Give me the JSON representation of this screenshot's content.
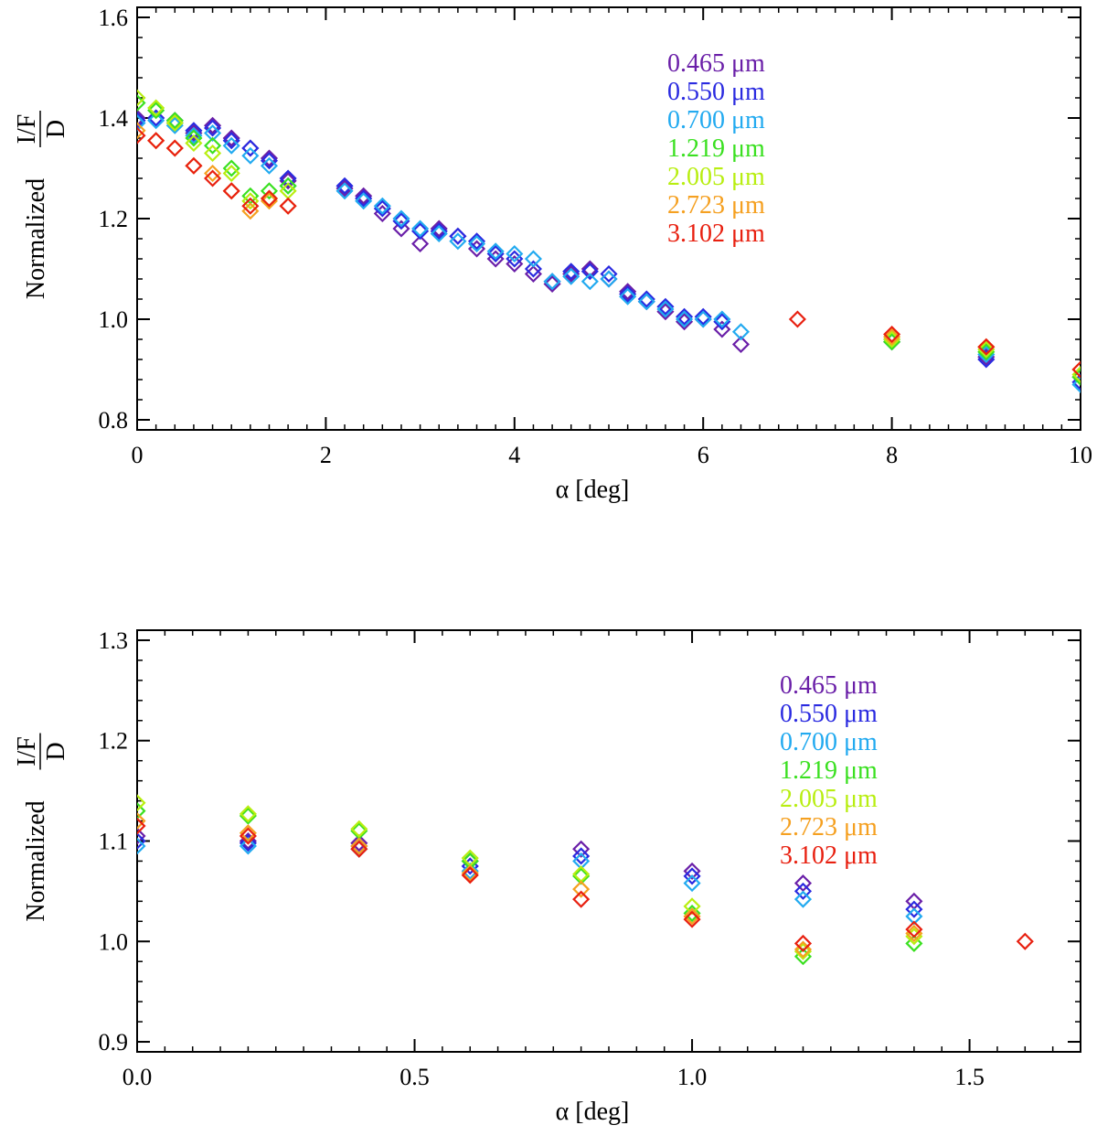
{
  "chart_data": [
    {
      "type": "scatter",
      "marker": "diamond",
      "xlabel": "α [deg]",
      "ylabel_prefix": "Normalized",
      "ylabel_num": "I/F",
      "ylabel_den": "D",
      "xlim": [
        0,
        10
      ],
      "ylim": [
        0.78,
        1.62
      ],
      "xticks": [
        0,
        2,
        4,
        6,
        8,
        10
      ],
      "xtick_labels": [
        "0",
        "2",
        "4",
        "6",
        "8",
        "10"
      ],
      "yticks": [
        0.8,
        1.0,
        1.2,
        1.4,
        1.6
      ],
      "ytick_labels": [
        "0.8",
        "1.0",
        "1.2",
        "1.4",
        "1.6"
      ],
      "legend_placement": "top-right",
      "series": [
        {
          "name": "0.465 μm",
          "color": "#6a1fa8",
          "x": [
            0,
            0.2,
            0.4,
            0.6,
            0.8,
            1.0,
            1.2,
            1.4,
            1.6,
            2.2,
            2.4,
            2.6,
            2.8,
            3.0,
            3.2,
            3.4,
            3.6,
            3.8,
            4.0,
            4.2,
            4.4,
            4.6,
            4.8,
            5.0,
            5.2,
            5.4,
            5.6,
            5.8,
            6.0,
            6.2,
            6.4,
            9.0,
            10.0
          ],
          "y": [
            1.4,
            1.4,
            1.395,
            1.37,
            1.385,
            1.36,
            1.34,
            1.32,
            1.275,
            1.26,
            1.245,
            1.21,
            1.18,
            1.15,
            1.18,
            1.165,
            1.14,
            1.12,
            1.11,
            1.09,
            1.07,
            1.09,
            1.1,
            1.08,
            1.055,
            1.035,
            1.015,
            0.995,
            1.0,
            0.98,
            0.95,
            0.925,
            0.885
          ]
        },
        {
          "name": "0.550 μm",
          "color": "#2a2ae0",
          "x": [
            0,
            0.2,
            0.4,
            0.6,
            0.8,
            1.0,
            1.2,
            1.4,
            1.6,
            2.2,
            2.4,
            2.6,
            2.8,
            3.0,
            3.2,
            3.4,
            3.6,
            3.8,
            4.0,
            4.2,
            4.4,
            4.6,
            4.8,
            5.0,
            5.2,
            5.4,
            5.6,
            5.8,
            6.0,
            6.2,
            8.0,
            9.0,
            10.0
          ],
          "y": [
            1.395,
            1.4,
            1.39,
            1.375,
            1.38,
            1.355,
            1.34,
            1.315,
            1.28,
            1.265,
            1.24,
            1.22,
            1.195,
            1.175,
            1.175,
            1.165,
            1.155,
            1.13,
            1.12,
            1.1,
            1.075,
            1.095,
            1.095,
            1.09,
            1.05,
            1.04,
            1.025,
            1.005,
            1.005,
            0.995,
            0.955,
            0.92,
            0.875
          ]
        },
        {
          "name": "0.700 μm",
          "color": "#22aaf0",
          "x": [
            0,
            0.2,
            0.4,
            0.6,
            0.8,
            1.0,
            1.2,
            1.4,
            1.6,
            2.2,
            2.4,
            2.6,
            2.8,
            3.0,
            3.2,
            3.4,
            3.6,
            3.8,
            4.0,
            4.2,
            4.4,
            4.6,
            4.8,
            5.0,
            5.2,
            5.4,
            5.6,
            5.8,
            6.0,
            6.2,
            6.4,
            8.0,
            9.0,
            10.0
          ],
          "y": [
            1.39,
            1.395,
            1.385,
            1.365,
            1.37,
            1.345,
            1.325,
            1.305,
            1.265,
            1.255,
            1.235,
            1.225,
            1.2,
            1.18,
            1.17,
            1.155,
            1.15,
            1.135,
            1.13,
            1.12,
            1.075,
            1.085,
            1.075,
            1.08,
            1.045,
            1.035,
            1.02,
            1.0,
            1.0,
            1.0,
            0.975,
            0.96,
            0.93,
            0.87
          ]
        },
        {
          "name": "1.219 μm",
          "color": "#3ae020",
          "x": [
            0,
            0.2,
            0.4,
            0.6,
            0.8,
            1.0,
            1.2,
            1.4,
            1.6,
            8.0,
            9.0,
            10.0
          ],
          "y": [
            1.43,
            1.415,
            1.395,
            1.36,
            1.345,
            1.3,
            1.245,
            1.255,
            1.265,
            0.955,
            0.935,
            0.885
          ]
        },
        {
          "name": "2.005 μm",
          "color": "#b8ee10",
          "x": [
            0,
            0.2,
            0.4,
            0.6,
            0.8,
            1.0,
            1.2,
            1.4,
            1.6,
            8.0,
            9.0,
            10.0
          ],
          "y": [
            1.44,
            1.42,
            1.39,
            1.35,
            1.33,
            1.29,
            1.235,
            1.24,
            1.255,
            0.96,
            0.94,
            0.89
          ]
        },
        {
          "name": "2.723 μm",
          "color": "#f5a020",
          "x": [
            0,
            0.2,
            0.4,
            0.6,
            0.8,
            1.0,
            1.2,
            1.4,
            1.6,
            8.0,
            9.0,
            10.0
          ],
          "y": [
            1.375,
            1.355,
            1.34,
            1.305,
            1.29,
            1.255,
            1.215,
            1.235,
            1.225,
            0.965,
            0.945,
            0.9
          ]
        },
        {
          "name": "3.102 μm",
          "color": "#e82010",
          "x": [
            0,
            0.2,
            0.4,
            0.6,
            0.8,
            1.0,
            1.2,
            1.4,
            1.6,
            7.0,
            8.0,
            9.0,
            10.0
          ],
          "y": [
            1.365,
            1.355,
            1.34,
            1.305,
            1.28,
            1.255,
            1.225,
            1.24,
            1.225,
            1.0,
            0.97,
            0.945,
            0.9
          ]
        }
      ]
    },
    {
      "type": "scatter",
      "marker": "diamond",
      "xlabel": "α [deg]",
      "ylabel_prefix": "Normalized",
      "ylabel_num": "I/F",
      "ylabel_den": "D",
      "xlim": [
        0,
        1.7
      ],
      "ylim": [
        0.89,
        1.31
      ],
      "xticks": [
        0.0,
        0.5,
        1.0,
        1.5
      ],
      "xtick_labels": [
        "0.0",
        "0.5",
        "1.0",
        "1.5"
      ],
      "yticks": [
        0.9,
        1.0,
        1.1,
        1.2,
        1.3
      ],
      "ytick_labels": [
        "0.9",
        "1.0",
        "1.1",
        "1.2",
        "1.3"
      ],
      "legend_placement": "top-right",
      "series": [
        {
          "name": "0.465 μm",
          "color": "#6a1fa8",
          "x": [
            0,
            0.2,
            0.4,
            0.6,
            0.8,
            1.0,
            1.2,
            1.4
          ],
          "y": [
            1.105,
            1.1,
            1.098,
            1.08,
            1.092,
            1.07,
            1.058,
            1.04
          ]
        },
        {
          "name": "0.550 μm",
          "color": "#2a2ae0",
          "x": [
            0,
            0.2,
            0.4,
            0.6,
            0.8,
            1.0,
            1.2,
            1.4
          ],
          "y": [
            1.1,
            1.098,
            1.095,
            1.075,
            1.085,
            1.065,
            1.05,
            1.032
          ]
        },
        {
          "name": "0.700 μm",
          "color": "#22aaf0",
          "x": [
            0,
            0.2,
            0.4,
            0.6,
            0.8,
            1.0,
            1.2,
            1.4
          ],
          "y": [
            1.095,
            1.095,
            1.092,
            1.07,
            1.08,
            1.058,
            1.042,
            1.025
          ]
        },
        {
          "name": "1.219 μm",
          "color": "#3ae020",
          "x": [
            0,
            0.2,
            0.4,
            0.6,
            0.8,
            1.0,
            1.2,
            1.4
          ],
          "y": [
            1.13,
            1.125,
            1.11,
            1.08,
            1.065,
            1.028,
            0.985,
            0.998
          ]
        },
        {
          "name": "2.005 μm",
          "color": "#b8ee10",
          "x": [
            0,
            0.2,
            0.4,
            0.6,
            0.8,
            1.0,
            1.2,
            1.4
          ],
          "y": [
            1.138,
            1.127,
            1.112,
            1.083,
            1.067,
            1.035,
            0.99,
            1.005
          ]
        },
        {
          "name": "2.723 μm",
          "color": "#f5a020",
          "x": [
            0,
            0.2,
            0.4,
            0.6,
            0.8,
            1.0,
            1.2,
            1.4
          ],
          "y": [
            1.12,
            1.108,
            1.095,
            1.068,
            1.052,
            1.025,
            0.992,
            1.008
          ]
        },
        {
          "name": "3.102 μm",
          "color": "#e82010",
          "x": [
            0,
            0.2,
            0.4,
            0.6,
            0.8,
            1.0,
            1.2,
            1.4,
            1.6
          ],
          "y": [
            1.115,
            1.105,
            1.092,
            1.066,
            1.042,
            1.022,
            0.998,
            1.012,
            1.0
          ]
        }
      ]
    }
  ]
}
